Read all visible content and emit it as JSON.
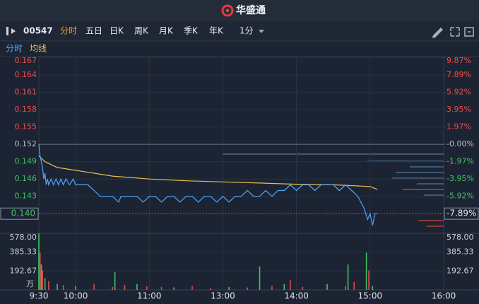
{
  "header": {
    "logo": "华盛通"
  },
  "toolbar": {
    "code": "00547",
    "tabs": [
      "分时",
      "五日",
      "日K",
      "周K",
      "月K",
      "季K",
      "年K"
    ],
    "interval": "1分"
  },
  "chart_data": [
    {
      "type": "line",
      "prev_close": 0.152,
      "ylim": [
        0.1366,
        0.1672
      ],
      "yticks": [
        0.167,
        0.164,
        0.161,
        0.158,
        0.155,
        0.152,
        0.149,
        0.146,
        0.143
      ],
      "y2lim": [
        -10.13,
        10.0
      ],
      "y2ticks": [
        {
          "value": 9.87,
          "label": "9.87%"
        },
        {
          "value": 7.89,
          "label": "7.89%"
        },
        {
          "value": 5.92,
          "label": "5.92%"
        },
        {
          "value": 3.95,
          "label": "3.95%"
        },
        {
          "value": 1.97,
          "label": "1.97%"
        },
        {
          "value": 0,
          "label": "-0.00%"
        },
        {
          "value": -1.97,
          "label": "-1.97%"
        },
        {
          "value": -3.95,
          "label": "-3.95%"
        },
        {
          "value": -5.92,
          "label": "-5.92%"
        }
      ],
      "current_price": {
        "value": 0.14,
        "label": "0.140"
      },
      "current_change": {
        "value": -7.89,
        "label": "-7.89%"
      },
      "series": [
        {
          "name": "分时",
          "color": "#4ea6ff",
          "x": [
            0,
            1,
            2,
            3,
            4,
            5,
            6,
            7,
            8,
            10,
            12,
            14,
            16,
            18,
            20,
            22,
            25,
            28,
            30,
            35,
            40,
            45,
            50,
            55,
            60,
            65,
            67,
            70,
            75,
            80,
            85,
            90,
            95,
            100,
            105,
            110,
            115,
            120,
            125,
            130,
            135,
            140,
            145,
            150,
            155,
            160,
            165,
            170,
            175,
            180,
            185,
            190,
            195,
            200,
            205,
            210,
            215,
            220,
            225,
            230,
            235,
            240,
            245,
            250,
            255,
            260,
            265,
            268,
            270,
            272,
            274,
            276
          ],
          "values": [
            0.152,
            0.15,
            0.149,
            0.148,
            0.146,
            0.147,
            0.145,
            0.146,
            0.145,
            0.146,
            0.145,
            0.146,
            0.145,
            0.146,
            0.145,
            0.146,
            0.145,
            0.146,
            0.145,
            0.145,
            0.145,
            0.144,
            0.143,
            0.143,
            0.143,
            0.142,
            0.143,
            0.143,
            0.143,
            0.143,
            0.142,
            0.143,
            0.143,
            0.142,
            0.143,
            0.143,
            0.142,
            0.143,
            0.143,
            0.142,
            0.143,
            0.143,
            0.142,
            0.143,
            0.142,
            0.143,
            0.143,
            0.144,
            0.143,
            0.143,
            0.144,
            0.143,
            0.144,
            0.144,
            0.145,
            0.144,
            0.145,
            0.145,
            0.144,
            0.145,
            0.145,
            0.145,
            0.144,
            0.145,
            0.144,
            0.143,
            0.141,
            0.139,
            0.14,
            0.138,
            0.14,
            0.14
          ]
        },
        {
          "name": "均线",
          "color": "#e6c14a",
          "x": [
            0,
            5,
            15,
            30,
            60,
            90,
            120,
            150,
            180,
            210,
            240,
            270,
            276
          ],
          "values": [
            0.15,
            0.149,
            0.148,
            0.1475,
            0.1465,
            0.146,
            0.1457,
            0.1455,
            0.1453,
            0.1451,
            0.145,
            0.1447,
            0.1442
          ]
        }
      ]
    },
    {
      "type": "bar",
      "unit": "万",
      "xlim": [
        0,
        330
      ],
      "xticks": [
        {
          "value": 0,
          "label": "9:30"
        },
        {
          "value": 30,
          "label": "10:00"
        },
        {
          "value": 90,
          "label": "11:00"
        },
        {
          "value": 150,
          "label": "13:00"
        },
        {
          "value": 210,
          "label": "14:00"
        },
        {
          "value": 270,
          "label": "15:00"
        },
        {
          "value": 330,
          "label": "16:00"
        }
      ],
      "ylim": [
        0,
        578
      ],
      "yticks": [
        {
          "value": 578,
          "label": "578.00"
        },
        385.33,
        192.67
      ],
      "x": [
        0,
        1,
        2,
        3,
        5,
        8,
        15,
        20,
        30,
        45,
        60,
        62,
        70,
        80,
        88,
        100,
        110,
        125,
        140,
        155,
        170,
        180,
        190,
        200,
        205,
        215,
        235,
        250,
        252,
        257,
        267,
        269,
        272
      ],
      "values": [
        578,
        380,
        260,
        200,
        120,
        90,
        60,
        50,
        40,
        60,
        30,
        180,
        50,
        60,
        35,
        30,
        25,
        40,
        20,
        30,
        25,
        240,
        40,
        60,
        100,
        30,
        60,
        40,
        260,
        80,
        380,
        200,
        40
      ],
      "colors": [
        "#3fc35f",
        "#e04848",
        "#3fc35f",
        "#e04848",
        "#3fc35f",
        "#e04848",
        "#3fc35f",
        "#e04848",
        "#3fc35f",
        "#e04848",
        "#e04848",
        "#3fc35f",
        "#e04848",
        "#3fc35f",
        "#e04848",
        "#e04848",
        "#3fc35f",
        "#e04848",
        "#e04848",
        "#3fc35f",
        "#e04848",
        "#3fc35f",
        "#e04848",
        "#3fc35f",
        "#e04848",
        "#e04848",
        "#3fc35f",
        "#e04848",
        "#3fc35f",
        "#e04848",
        "#3fc35f",
        "#e04848",
        "#3fc35f"
      ]
    }
  ]
}
